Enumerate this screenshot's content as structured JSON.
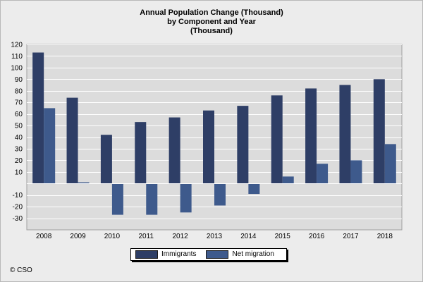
{
  "chart_data": {
    "type": "bar",
    "title_lines": [
      "Annual Population Change (Thousand)",
      "by Component and Year",
      "(Thousand)"
    ],
    "categories": [
      "2008",
      "2009",
      "2010",
      "2011",
      "2012",
      "2013",
      "2014",
      "2015",
      "2016",
      "2017",
      "2018"
    ],
    "series": [
      {
        "name": "Immigrants",
        "color": "#2e3e66",
        "values": [
          113,
          74,
          42,
          53,
          57,
          63,
          67,
          76,
          82,
          85,
          90
        ]
      },
      {
        "name": "Net migration",
        "color": "#3e5a8c",
        "values": [
          65,
          1,
          -27,
          -27,
          -25,
          -19,
          -9,
          6,
          17,
          20,
          34
        ]
      }
    ],
    "yticks": [
      120,
      110,
      100,
      90,
      80,
      70,
      60,
      50,
      40,
      30,
      20,
      10,
      -10,
      -20,
      -30
    ],
    "ylim": [
      -40,
      120
    ],
    "xlabel": "",
    "ylabel": "",
    "grid": true,
    "legend_position": "bottom-center"
  },
  "footer": {
    "copyright": "© CSO"
  }
}
